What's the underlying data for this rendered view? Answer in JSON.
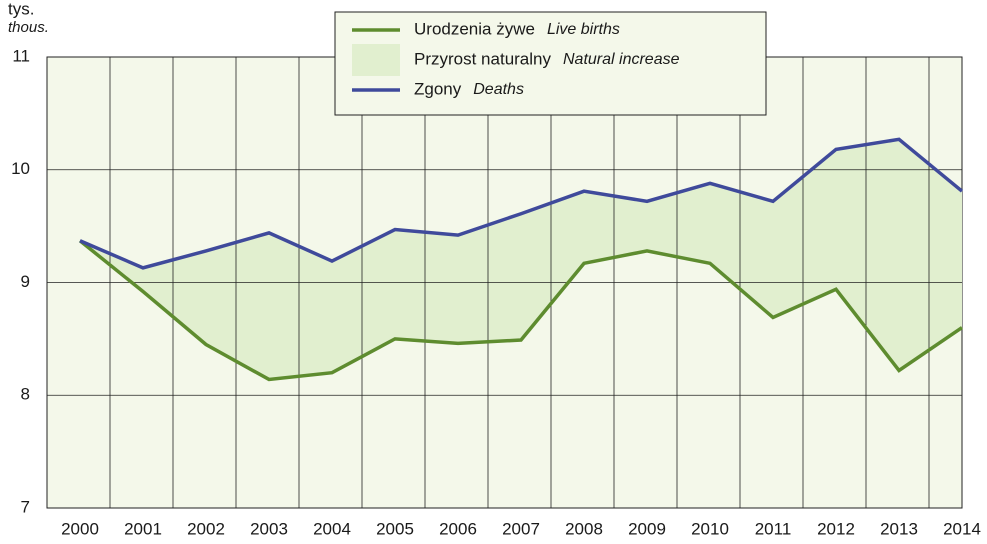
{
  "chart_data": {
    "type": "line",
    "y_label": "tys.",
    "y_label_en": "thous.",
    "categories": [
      "2000",
      "2001",
      "2002",
      "2003",
      "2004",
      "2005",
      "2006",
      "2007",
      "2008",
      "2009",
      "2010",
      "2011",
      "2012",
      "2013",
      "2014"
    ],
    "series": [
      {
        "name": "Urodzenia żywe",
        "name_en": "Live births",
        "color": "#5e8c2f",
        "values": [
          9.37,
          8.92,
          8.45,
          8.14,
          8.2,
          8.5,
          8.46,
          8.49,
          9.17,
          9.28,
          9.17,
          8.69,
          8.94,
          8.22,
          8.6
        ]
      },
      {
        "name": "Zgony",
        "name_en": "Deaths",
        "color": "#3f4a9b",
        "values": [
          9.37,
          9.13,
          9.28,
          9.44,
          9.19,
          9.47,
          9.42,
          9.61,
          9.81,
          9.72,
          9.88,
          9.72,
          10.18,
          10.27,
          9.81
        ]
      }
    ],
    "area": {
      "name": "Przyrost naturalny",
      "name_en": "Natural increase",
      "color": "#e1efcf"
    },
    "ylim": [
      7,
      11
    ],
    "yticks": [
      7,
      8,
      9,
      10,
      11
    ],
    "grid": true
  }
}
